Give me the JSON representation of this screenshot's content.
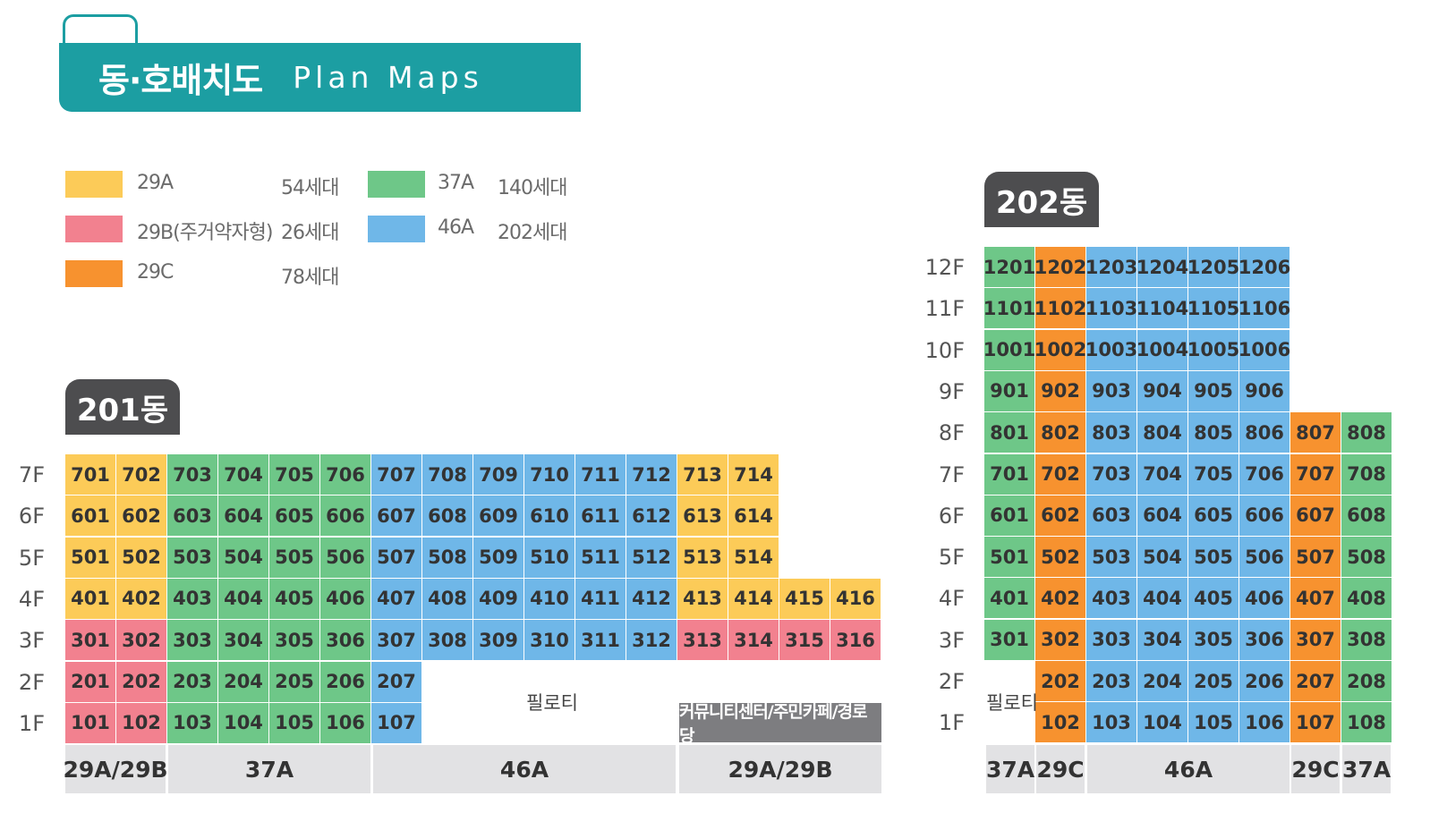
{
  "header": {
    "title_ko": "동·호배치도",
    "title_en": "Plan Maps"
  },
  "colors": {
    "29A": "#fccb58",
    "29B": "#f2818f",
    "29C": "#f7922f",
    "37A": "#6ec788",
    "46A": "#6fb7e8",
    "teal": "#1c9ea2",
    "badge": "#4d4d4f"
  },
  "legend": [
    {
      "type": "29A",
      "label": "29A",
      "count": "54세대"
    },
    {
      "type": "29B",
      "label": "29B(주거약자형)",
      "count": "26세대"
    },
    {
      "type": "29C",
      "label": "29C",
      "count": "78세대"
    },
    {
      "type": "37A",
      "label": "37A",
      "count": "140세대"
    },
    {
      "type": "46A",
      "label": "46A",
      "count": "202세대"
    }
  ],
  "building201": {
    "name": "201동",
    "floors": [
      "7F",
      "6F",
      "5F",
      "4F",
      "3F",
      "2F",
      "1F"
    ],
    "piloti": "필로티",
    "community": "커뮤니티센터/주민카페/경로당",
    "footer": [
      "29A/29B",
      "37A",
      "46A",
      "29A/29B"
    ]
  },
  "building202": {
    "name": "202동",
    "floors": [
      "12F",
      "11F",
      "10F",
      "9F",
      "8F",
      "7F",
      "6F",
      "5F",
      "4F",
      "3F",
      "2F",
      "1F"
    ],
    "piloti": "필로티",
    "footer": [
      "37A",
      "29C",
      "46A",
      "29C",
      "37A"
    ]
  }
}
